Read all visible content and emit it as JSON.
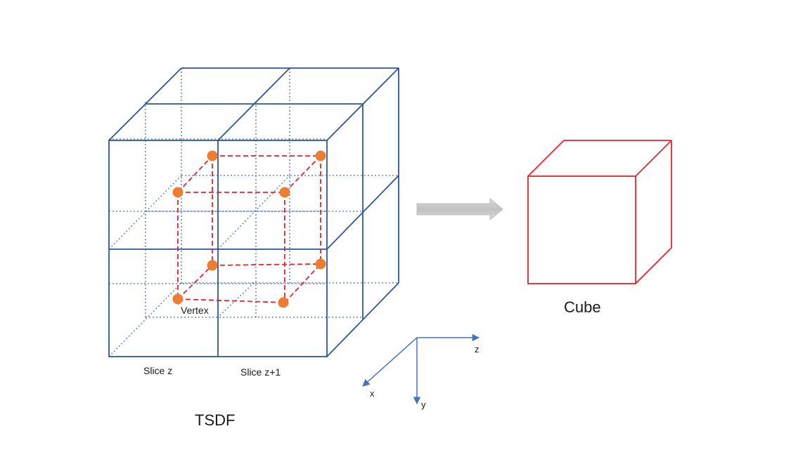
{
  "labels": {
    "vertex": "Vertex",
    "slice_z": "Slice z",
    "slice_z1": "Slice z+1",
    "tsdf": "TSDF",
    "cube": "Cube",
    "axis_x": "x",
    "axis_y": "y",
    "axis_z": "z"
  },
  "colors": {
    "grid_blue": "#2f5597",
    "light_blue": "#4472c4",
    "red": "#e8232a",
    "vertex_orange": "#ed7d31",
    "arrow_gray": "#c8c8c8"
  }
}
